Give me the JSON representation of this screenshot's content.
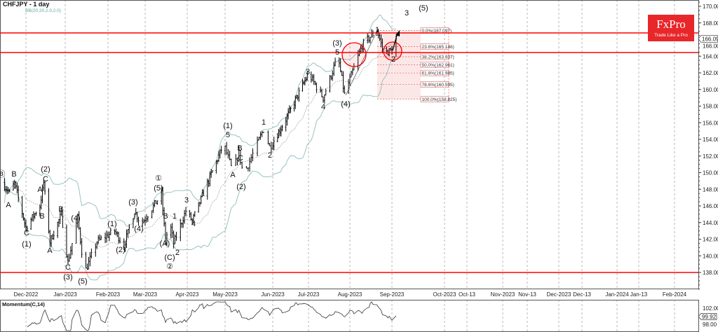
{
  "header": {
    "title": "CHFJPY - 1 day",
    "indicator_label": "BB(20,20,2.0,2.0)"
  },
  "logo": {
    "brand": "FxPro",
    "tagline": "Trade Like a Pro"
  },
  "lower_panel": {
    "title": "Momentum(C,14)",
    "ticks": [
      "102.00",
      "98.00"
    ],
    "current": "99.92"
  },
  "colors": {
    "support_resistance": "#ff0000",
    "bands": "#8fbcbc",
    "bars": "#000000",
    "fib_fill": "#fbe3e3",
    "logo_bg": "#e8272a"
  },
  "chart_data": {
    "type": "ohlc",
    "symbol": "CHFJPY",
    "timeframe": "1 day",
    "ylim": [
      136,
      171
    ],
    "y_ticks": [
      "170.000",
      "168.000",
      "166.000",
      "164.000",
      "162.000",
      "160.000",
      "158.000",
      "156.000",
      "154.000",
      "152.000",
      "150.000",
      "148.000",
      "146.000",
      "144.000",
      "142.000",
      "140.000",
      "138.000"
    ],
    "current_price": "166.091",
    "x_ticks": [
      "Dec-2022",
      "Jan-2023",
      "Feb-2023",
      "Mar-2023",
      "Apr-2023",
      "May-2023",
      "Jun-2023",
      "Jul-2023",
      "Aug-2023",
      "Sep-2023",
      "Oct-2023",
      "Oct-13",
      "Nov-2023",
      "Nov-13",
      "Dec-2023",
      "Dec-13",
      "Jan-2024",
      "Jan-13",
      "Feb-2024"
    ],
    "horizontal_levels": [
      166.8,
      164.44,
      138.0
    ],
    "price_path": [
      [
        "2022-11-12",
        148.8
      ],
      [
        "2022-11-18",
        147.6
      ],
      [
        "2022-11-22",
        148.7
      ],
      [
        "2022-12-01",
        143.4
      ],
      [
        "2022-12-12",
        146.0
      ],
      [
        "2022-12-15",
        148.8
      ],
      [
        "2022-12-20",
        141.7
      ],
      [
        "2022-12-29",
        145.0
      ],
      [
        "2023-01-03",
        139.2
      ],
      [
        "2023-01-10",
        144.6
      ],
      [
        "2023-01-15",
        137.9
      ],
      [
        "2023-01-24",
        141.7
      ],
      [
        "2023-02-06",
        143.0
      ],
      [
        "2023-02-13",
        141.2
      ],
      [
        "2023-02-21",
        145.4
      ],
      [
        "2023-02-26",
        143.8
      ],
      [
        "2023-03-13",
        147.4
      ],
      [
        "2023-03-16",
        141.7
      ],
      [
        "2023-03-19",
        144.2
      ],
      [
        "2023-03-22",
        141.5
      ],
      [
        "2023-03-31",
        145.4
      ],
      [
        "2023-04-05",
        144.2
      ],
      [
        "2023-04-30",
        153.5
      ],
      [
        "2023-05-06",
        150.1
      ],
      [
        "2023-05-10",
        152.4
      ],
      [
        "2023-05-13",
        149.7
      ],
      [
        "2023-05-26",
        155.2
      ],
      [
        "2023-05-30",
        153.1
      ],
      [
        "2023-06-12",
        156.4
      ],
      [
        "2023-07-01",
        161.9
      ],
      [
        "2023-07-12",
        159.0
      ],
      [
        "2023-07-23",
        164.0
      ],
      [
        "2023-07-28",
        159.4
      ],
      [
        "2023-08-10",
        165.3
      ],
      [
        "2023-08-21",
        167.2
      ],
      [
        "2023-08-26",
        164.4
      ],
      [
        "2023-09-01",
        164.7
      ],
      [
        "2023-09-04",
        166.09
      ]
    ],
    "indicators": [
      "Bollinger Bands (20, 2)",
      "Momentum (C,14)"
    ],
    "fibonacci": [
      {
        "label": "0.0%(167.097)",
        "value": 167.097
      },
      {
        "label": "23.6%(165.146)",
        "value": 165.146
      },
      {
        "label": "38.2%(163.937)",
        "value": 163.937
      },
      {
        "label": "50.0%(162.961)",
        "value": 162.961
      },
      {
        "label": "61.8%(161.985)",
        "value": 161.985
      },
      {
        "label": "78.6%(160.595)",
        "value": 160.595
      },
      {
        "label": "100.0%(158.825)",
        "value": 158.825
      }
    ],
    "wave_labels": [
      "Ⓑ",
      "B",
      "A",
      "C",
      "(1)",
      "(2)",
      "C",
      "A",
      "B",
      "A",
      "B",
      "(4)",
      "C",
      "(3)",
      "(5)",
      "(1)",
      "(2)",
      "(3)",
      "(4)",
      "①",
      "(5)",
      "B",
      "1",
      "(A)",
      "(C)",
      "②",
      "2",
      "3",
      "4",
      "(1)",
      "5",
      "A",
      "B",
      "C",
      "(2)",
      "1",
      "2",
      "3",
      "4",
      "(3)",
      "5",
      "(4)",
      "1",
      "2",
      "3",
      "(5)"
    ]
  }
}
